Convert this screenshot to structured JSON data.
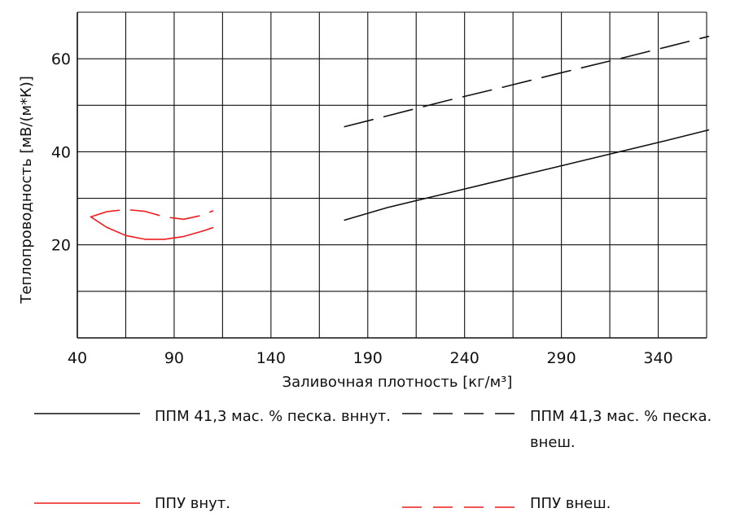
{
  "chart_data": {
    "type": "line",
    "xlabel": "Заливочная плотность [кг/м³]",
    "ylabel": "Теплопроводность [мВ/(м*К)]",
    "xlim": [
      40,
      365
    ],
    "ylim": [
      0,
      70
    ],
    "xticks": [
      40,
      90,
      140,
      190,
      240,
      290,
      340
    ],
    "yticks": [
      20,
      40,
      60
    ],
    "xgrid": [
      40,
      65,
      90,
      115,
      140,
      165,
      190,
      215,
      240,
      265,
      290,
      315,
      340,
      365
    ],
    "ygrid": [
      10,
      20,
      30,
      40,
      50,
      60,
      70
    ],
    "grid": true,
    "legend_position": "bottom",
    "series": [
      {
        "name": "ППМ 41,3 мас. % песка. вннут.",
        "color": "#111111",
        "dash": "solid",
        "x": [
          178,
          200,
          230,
          260,
          290,
          320,
          345,
          366
        ],
        "y": [
          25.3,
          28.0,
          31.0,
          34.0,
          37.0,
          40.0,
          42.5,
          44.7
        ]
      },
      {
        "name": "ППМ 41,3 мас. % песка. внеш.",
        "color": "#111111",
        "dash": "dashed",
        "x": [
          178,
          200,
          230,
          260,
          290,
          320,
          345,
          366
        ],
        "y": [
          45.4,
          47.7,
          50.9,
          53.9,
          57.0,
          60.0,
          62.6,
          64.8
        ]
      },
      {
        "name": "ППУ внут.",
        "color": "#ee1c1c",
        "dash": "solid",
        "x": [
          47,
          55,
          65,
          75,
          85,
          95,
          105,
          110
        ],
        "y": [
          26.0,
          23.8,
          22.0,
          21.2,
          21.2,
          21.8,
          23.0,
          23.7
        ]
      },
      {
        "name": "ППУ внеш.",
        "color": "#ee1c1c",
        "dash": "dashed",
        "x": [
          47,
          55,
          65,
          75,
          85,
          95,
          105,
          110
        ],
        "y": [
          26.0,
          27.1,
          27.6,
          27.2,
          26.0,
          25.5,
          26.4,
          27.3
        ]
      }
    ]
  }
}
